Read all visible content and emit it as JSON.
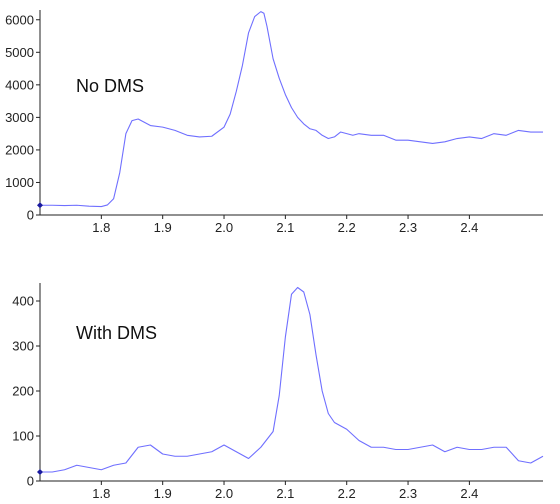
{
  "chart_data": [
    {
      "type": "line",
      "title": "No DMS",
      "xlabel": "",
      "ylabel": "",
      "xlim": [
        1.7,
        2.52
      ],
      "ylim": [
        0,
        6300
      ],
      "xticks": [
        1.8,
        1.9,
        2.0,
        2.1,
        2.2,
        2.3,
        2.4
      ],
      "xtick_labels": [
        "1.8",
        "1.9",
        "2.0",
        "2.1",
        "2.2",
        "2.3",
        "2.4"
      ],
      "yticks": [
        0,
        1000,
        2000,
        3000,
        4000,
        5000,
        6000
      ],
      "ytick_labels": [
        "0",
        "1000",
        "2000",
        "3000",
        "4000",
        "5000",
        "6000"
      ],
      "grid": false,
      "line_color": "#6f6fff",
      "marker_color": "#1a1aa0",
      "series": [
        {
          "x": [
            1.7,
            1.72,
            1.74,
            1.76,
            1.78,
            1.8,
            1.81,
            1.82,
            1.83,
            1.84,
            1.85,
            1.86,
            1.87,
            1.88,
            1.9,
            1.92,
            1.94,
            1.96,
            1.98,
            2.0,
            2.01,
            2.02,
            2.03,
            2.04,
            2.05,
            2.06,
            2.065,
            2.07,
            2.08,
            2.09,
            2.1,
            2.11,
            2.12,
            2.13,
            2.14,
            2.15,
            2.16,
            2.17,
            2.18,
            2.19,
            2.2,
            2.21,
            2.22,
            2.24,
            2.26,
            2.28,
            2.3,
            2.32,
            2.34,
            2.36,
            2.38,
            2.4,
            2.42,
            2.44,
            2.46,
            2.48,
            2.5,
            2.52
          ],
          "y": [
            300,
            300,
            290,
            300,
            270,
            260,
            310,
            500,
            1300,
            2500,
            2900,
            2950,
            2850,
            2750,
            2700,
            2600,
            2450,
            2400,
            2420,
            2700,
            3100,
            3800,
            4600,
            5600,
            6100,
            6250,
            6200,
            5800,
            4800,
            4200,
            3700,
            3300,
            3000,
            2800,
            2650,
            2600,
            2450,
            2350,
            2400,
            2550,
            2500,
            2450,
            2500,
            2450,
            2450,
            2300,
            2300,
            2250,
            2200,
            2250,
            2350,
            2400,
            2350,
            2500,
            2450,
            2600,
            2550,
            2550
          ]
        }
      ]
    },
    {
      "type": "line",
      "title": "With DMS",
      "xlabel": "",
      "ylabel": "",
      "xlim": [
        1.7,
        2.52
      ],
      "ylim": [
        0,
        440
      ],
      "xticks": [
        1.8,
        1.9,
        2.0,
        2.1,
        2.2,
        2.3,
        2.4
      ],
      "xtick_labels": [
        "1.8",
        "1.9",
        "2.0",
        "2.1",
        "2.2",
        "2.3",
        "2.4"
      ],
      "yticks": [
        0,
        100,
        200,
        300,
        400
      ],
      "ytick_labels": [
        "0",
        "100",
        "200",
        "300",
        "400"
      ],
      "grid": false,
      "line_color": "#6f6fff",
      "marker_color": "#1a1aa0",
      "series": [
        {
          "x": [
            1.7,
            1.72,
            1.74,
            1.76,
            1.78,
            1.8,
            1.82,
            1.84,
            1.86,
            1.88,
            1.9,
            1.92,
            1.94,
            1.96,
            1.98,
            2.0,
            2.02,
            2.04,
            2.06,
            2.08,
            2.09,
            2.1,
            2.11,
            2.12,
            2.13,
            2.14,
            2.15,
            2.16,
            2.17,
            2.18,
            2.2,
            2.22,
            2.24,
            2.26,
            2.28,
            2.3,
            2.32,
            2.34,
            2.36,
            2.38,
            2.4,
            2.42,
            2.44,
            2.46,
            2.48,
            2.5,
            2.52
          ],
          "y": [
            20,
            20,
            25,
            35,
            30,
            25,
            35,
            40,
            75,
            80,
            60,
            55,
            55,
            60,
            65,
            80,
            65,
            50,
            75,
            110,
            190,
            320,
            415,
            430,
            420,
            370,
            280,
            200,
            150,
            130,
            115,
            90,
            75,
            75,
            70,
            70,
            75,
            80,
            65,
            75,
            70,
            70,
            75,
            75,
            45,
            40,
            55
          ]
        }
      ]
    }
  ]
}
